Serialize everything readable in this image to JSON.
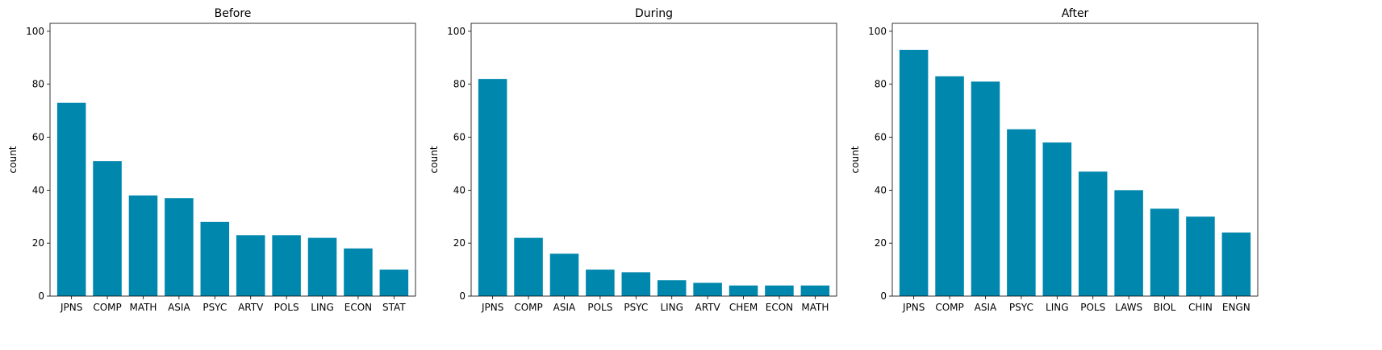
{
  "chart_data": [
    {
      "type": "bar",
      "title": "Before",
      "ylabel": "count",
      "ylim": [
        0,
        103
      ],
      "yticks": [
        0,
        20,
        40,
        60,
        80,
        100
      ],
      "categories": [
        "JPNS",
        "COMP",
        "MATH",
        "ASIA",
        "PSYC",
        "ARTV",
        "POLS",
        "LING",
        "ECON",
        "STAT"
      ],
      "values": [
        73,
        51,
        38,
        37,
        28,
        23,
        23,
        22,
        18,
        10
      ],
      "color": "#0087ad"
    },
    {
      "type": "bar",
      "title": "During",
      "ylabel": "count",
      "ylim": [
        0,
        103
      ],
      "yticks": [
        0,
        20,
        40,
        60,
        80,
        100
      ],
      "categories": [
        "JPNS",
        "COMP",
        "ASIA",
        "POLS",
        "PSYC",
        "LING",
        "ARTV",
        "CHEM",
        "ECON",
        "MATH"
      ],
      "values": [
        82,
        22,
        16,
        10,
        9,
        6,
        5,
        4,
        4,
        4
      ],
      "color": "#0087ad"
    },
    {
      "type": "bar",
      "title": "After",
      "ylabel": "count",
      "ylim": [
        0,
        103
      ],
      "yticks": [
        0,
        20,
        40,
        60,
        80,
        100
      ],
      "categories": [
        "JPNS",
        "COMP",
        "ASIA",
        "PSYC",
        "LING",
        "POLS",
        "LAWS",
        "BIOL",
        "CHIN",
        "ENGN"
      ],
      "values": [
        93,
        83,
        81,
        63,
        58,
        47,
        40,
        33,
        30,
        24
      ],
      "color": "#0087ad"
    }
  ]
}
